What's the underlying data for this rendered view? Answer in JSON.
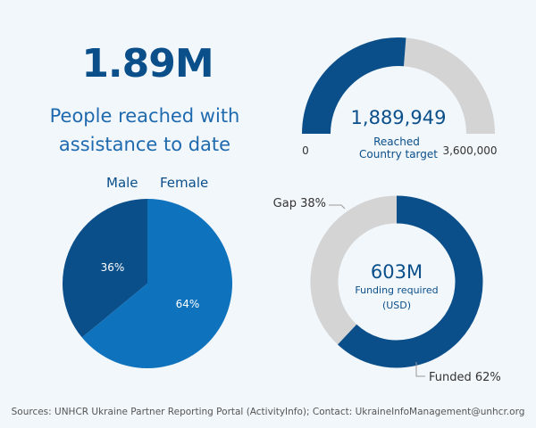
{
  "headline": {
    "value": "1.89M",
    "subtitle_line1": "People reached with",
    "subtitle_line2": "assistance to date"
  },
  "chart_data": [
    {
      "type": "gauge",
      "value_label": "1,889,949",
      "value": 1889949,
      "min": 0,
      "max": 3600000,
      "min_label": "0",
      "max_label": "3,600,000",
      "caption_reached": "Reached",
      "caption_target": "Country target",
      "colors": {
        "filled": "#0b4f8a",
        "remaining": "#d4d4d4"
      }
    },
    {
      "type": "pie",
      "legend": [
        "Male",
        "Female"
      ],
      "slices": [
        {
          "name": "Male",
          "value": 36,
          "label": "36%",
          "color": "#0b4f8a"
        },
        {
          "name": "Female",
          "value": 64,
          "label": "64%",
          "color": "#0e72bd"
        }
      ]
    },
    {
      "type": "donut",
      "center_value": "603M",
      "center_caption_line1": "Funding required",
      "center_caption_line2": "(USD)",
      "slices": [
        {
          "name": "Funded",
          "value": 62,
          "label": "Funded 62%",
          "color": "#0b4f8a"
        },
        {
          "name": "Gap",
          "value": 38,
          "label": "Gap 38%",
          "color": "#d4d4d4"
        }
      ]
    }
  ],
  "footer": {
    "source": "Sources: UNHCR Ukraine Partner Reporting Portal (ActivityInfo); Contact: UkraineInfoManagement@unhcr.org"
  }
}
